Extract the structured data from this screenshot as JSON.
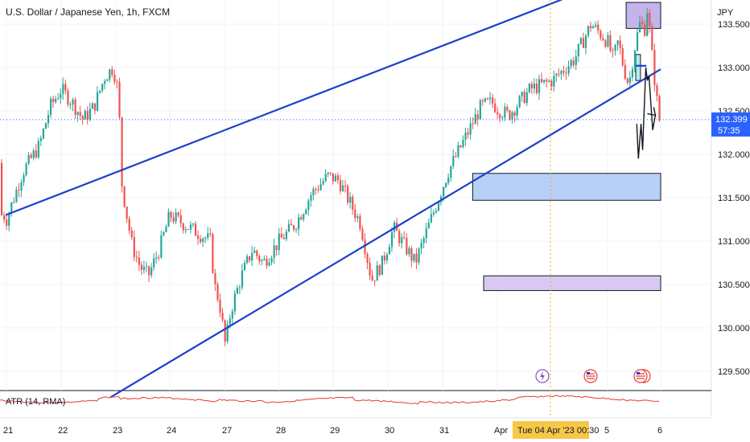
{
  "header": {
    "title": "U.S. Dollar / Japanese Yen, 1h, FXCM",
    "currency": "JPY"
  },
  "price_label": {
    "value": "132.399",
    "countdown": "57:35",
    "color": "#2962ff"
  },
  "indicator": {
    "label": "ATR (14, RMA)",
    "color": "#e53935"
  },
  "time_label": {
    "text": "Tue 04 Apr '23   00:30",
    "color": "#f7c748"
  },
  "chart_data": {
    "type": "candlestick",
    "title": "U.S. Dollar / Japanese Yen, 1h, FXCM",
    "ylim": [
      129.2,
      134.2
    ],
    "y_ticks": [
      129.5,
      130.0,
      130.5,
      131.0,
      131.5,
      132.0,
      132.5,
      133.0,
      133.5
    ],
    "y_tick_labels": [
      "129.500",
      "130.000",
      "130.500",
      "131.000",
      "131.500",
      "132.000",
      "132.500",
      "133.000",
      "133.500"
    ],
    "x_tick_labels": [
      "21",
      "22",
      "23",
      "24",
      "27",
      "28",
      "29",
      "30",
      "31",
      "Apr",
      "5",
      "6"
    ],
    "current_price": 132.399,
    "colors": {
      "up": "#26a69a",
      "down": "#ef5350",
      "channel": "#1e40c8",
      "supply_zone": "#c5b3ea",
      "demand_zone": "#b7d0f7",
      "small_zone": "#b2ebf2"
    },
    "channel_lines": [
      {
        "name": "upper",
        "from": {
          "day": 20.9,
          "price": 131.3
        },
        "to": {
          "day": 31.98,
          "price": 134.22
        }
      },
      {
        "name": "lower",
        "from": {
          "day": 22.9,
          "price": 129.2
        },
        "to": {
          "day": 33.0,
          "price": 132.98
        }
      }
    ],
    "zones": [
      {
        "name": "supply-zone-top",
        "x0": 31.35,
        "x1": 33.25,
        "y0": 133.45,
        "y1": 133.75,
        "color": "#c5b3ea"
      },
      {
        "name": "demand-zone-mid",
        "x0": 29.55,
        "x1": 32.9,
        "y0": 131.47,
        "y1": 131.78,
        "color": "#b7d0f7"
      },
      {
        "name": "support-zone-low",
        "x0": 29.75,
        "x1": 34.0,
        "y0": 130.43,
        "y1": 130.6,
        "color": "#d9c9f2"
      },
      {
        "name": "small-zone",
        "x0": 31.53,
        "x1": 31.62,
        "y0": 132.85,
        "y1": 133.15,
        "color": "#b2ebf2"
      }
    ],
    "projection_path": [
      {
        "day": 31.55,
        "price": 132.35
      },
      {
        "day": 31.58,
        "price": 131.95
      },
      {
        "day": 31.63,
        "price": 132.35
      },
      {
        "day": 31.66,
        "price": 132.05
      },
      {
        "day": 31.72,
        "price": 133.0
      },
      {
        "day": 31.75,
        "price": 132.85
      },
      {
        "day": 31.78,
        "price": 132.9
      },
      {
        "day": 31.85,
        "price": 132.28
      },
      {
        "day": 31.9,
        "price": 132.45
      }
    ],
    "candles_close_path": [
      [
        20.0,
        131.9
      ],
      [
        20.2,
        131.55
      ],
      [
        20.4,
        131.3
      ],
      [
        20.6,
        131.45
      ],
      [
        20.8,
        131.15
      ],
      [
        21.0,
        131.25
      ],
      [
        21.3,
        131.8
      ],
      [
        21.6,
        132.1
      ],
      [
        21.8,
        132.55
      ],
      [
        22.0,
        132.75
      ],
      [
        22.2,
        132.6
      ],
      [
        22.4,
        132.4
      ],
      [
        22.6,
        132.55
      ],
      [
        22.8,
        132.9
      ],
      [
        22.95,
        133.0
      ],
      [
        23.05,
        132.7
      ],
      [
        23.1,
        131.7
      ],
      [
        23.2,
        131.3
      ],
      [
        23.3,
        130.95
      ],
      [
        23.45,
        130.7
      ],
      [
        23.6,
        130.6
      ],
      [
        23.8,
        130.9
      ],
      [
        24.0,
        131.3
      ],
      [
        24.2,
        131.0
      ],
      [
        24.4,
        130.5
      ],
      [
        24.6,
        130.35
      ],
      [
        24.75,
        130.2
      ],
      [
        24.9,
        129.95
      ],
      [
        25.0,
        129.8
      ],
      [
        25.1,
        130.2
      ],
      [
        25.3,
        130.6
      ],
      [
        25.5,
        130.9
      ],
      [
        25.7,
        130.75
      ],
      [
        26.0,
        131.0
      ],
      [
        26.3,
        131.2
      ],
      [
        26.6,
        131.55
      ],
      [
        26.9,
        131.75
      ],
      [
        27.1,
        131.7
      ],
      [
        27.3,
        131.45
      ],
      [
        27.5,
        131.2
      ],
      [
        27.7,
        130.55
      ],
      [
        27.9,
        130.75
      ],
      [
        28.1,
        131.15
      ],
      [
        28.3,
        130.95
      ],
      [
        28.5,
        130.75
      ],
      [
        28.7,
        131.1
      ],
      [
        28.9,
        131.45
      ],
      [
        29.1,
        131.8
      ],
      [
        29.3,
        132.05
      ],
      [
        29.5,
        132.3
      ],
      [
        29.7,
        132.55
      ],
      [
        29.9,
        132.6
      ],
      [
        30.1,
        132.45
      ],
      [
        30.3,
        132.75
      ],
      [
        30.5,
        132.85
      ],
      [
        30.7,
        133.1
      ],
      [
        30.85,
        133.5
      ],
      [
        31.0,
        133.3
      ],
      [
        31.1,
        133.1
      ],
      [
        31.2,
        133.3
      ],
      [
        31.3,
        133.0
      ],
      [
        31.4,
        132.8
      ],
      [
        31.5,
        133.2
      ],
      [
        31.6,
        133.5
      ],
      [
        31.7,
        133.45
      ],
      [
        31.75,
        133.7
      ],
      [
        31.85,
        133.05
      ],
      [
        31.95,
        132.5
      ],
      [
        32.0,
        132.3
      ],
      [
        32.05,
        132.4
      ]
    ],
    "atr_label": "ATR (14, RMA)"
  }
}
